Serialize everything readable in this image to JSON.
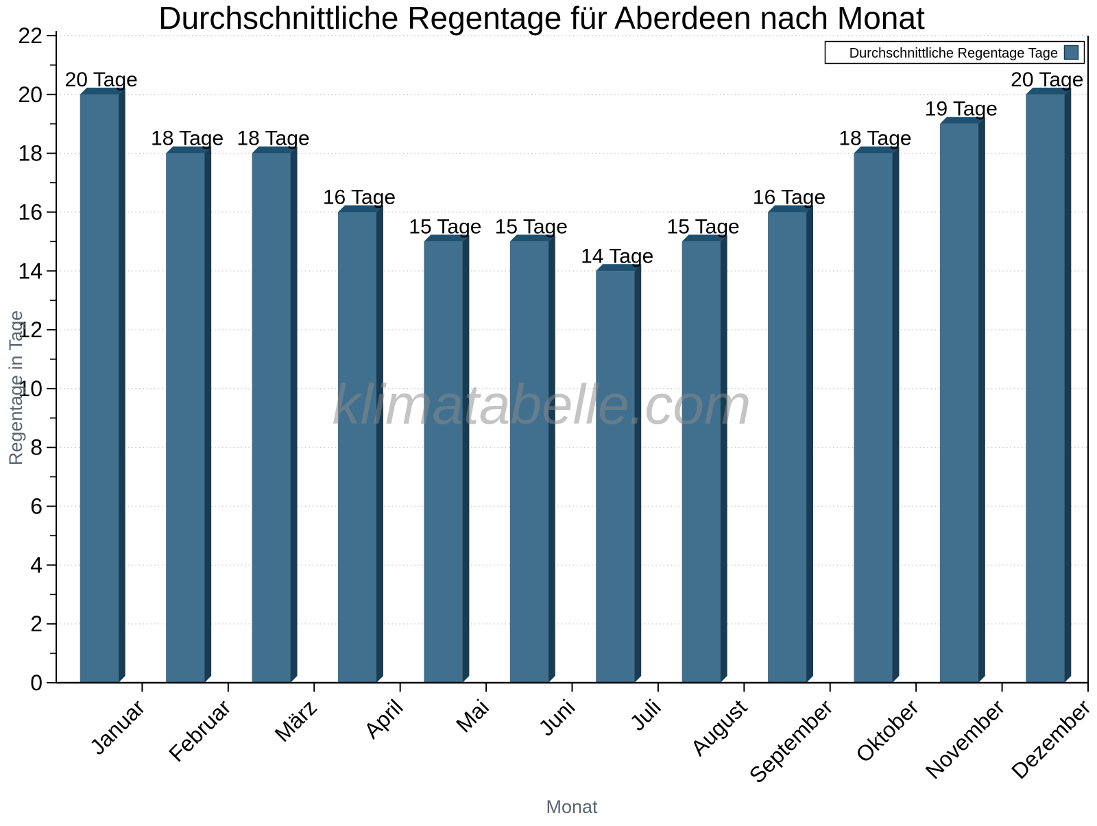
{
  "chart_data": {
    "type": "bar",
    "title": "Durchschnittliche Regentage für Aberdeen nach Monat",
    "xlabel": "Monat",
    "ylabel": "Regentage in Tage",
    "categories": [
      "Januar",
      "Februar",
      "März",
      "April",
      "Mai",
      "Juni",
      "Juli",
      "August",
      "September",
      "Oktober",
      "November",
      "Dezember"
    ],
    "values": [
      20,
      18,
      18,
      16,
      15,
      15,
      14,
      15,
      16,
      18,
      19,
      20
    ],
    "bar_labels": [
      "20 Tage",
      "18 Tage",
      "18 Tage",
      "16 Tage",
      "15 Tage",
      "15 Tage",
      "14 Tage",
      "15 Tage",
      "16 Tage",
      "18 Tage",
      "19 Tage",
      "20 Tage"
    ],
    "ylim": [
      0,
      22
    ],
    "ytick_step": 2,
    "yticks": [
      0,
      2,
      4,
      6,
      8,
      10,
      12,
      14,
      16,
      18,
      20,
      22
    ],
    "grid": "horizontal-dotted",
    "legend": {
      "label": "Durchschnittliche Regentage Tage",
      "position": "top-right"
    },
    "watermark": "klimatabelle.com",
    "colors": {
      "bar_front": "#41708F",
      "bar_side": "#173C53",
      "bar_top": "#1E5070",
      "grid": "#c6c6c6",
      "axis": "#000000",
      "axis_label_text": "#5A6570",
      "tick_label_text": "#000000",
      "watermark": "#8a8a8a",
      "legend_border": "#000000",
      "legend_background": "#ffffff"
    }
  }
}
